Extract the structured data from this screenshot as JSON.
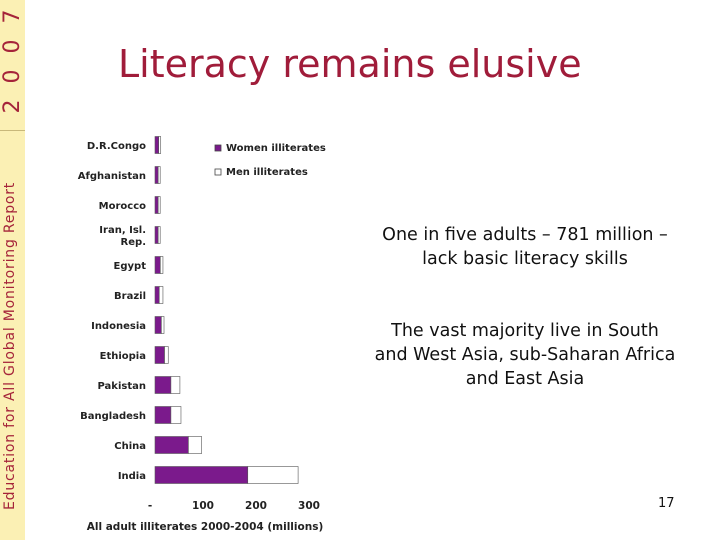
{
  "title": "Literacy remains elusive",
  "side_year_digits": [
    "2",
    "0",
    "0",
    "7"
  ],
  "side_text": "Education for All Global Monitoring Report",
  "callouts": [
    "One in five adults – 781 million – lack basic literacy skills",
    "The vast majority live in South and West Asia, sub-Saharan Africa and East Asia"
  ],
  "page_number": "17",
  "colors": {
    "accent": "#a01c3a",
    "women": "#7b1a8c",
    "men": "#ffffff",
    "band": "#fbf0b4"
  },
  "chart_data": {
    "type": "bar",
    "orientation": "horizontal",
    "stacked": true,
    "categories": [
      "D.R.Congo",
      "Afghanistan",
      "Morocco",
      "Iran, Isl. Rep.",
      "Egypt",
      "Brazil",
      "Indonesia",
      "Ethiopia",
      "Pakistan",
      "Bangladesh",
      "China",
      "India"
    ],
    "series": [
      {
        "name": "Women illiterates",
        "values": [
          7,
          6,
          6,
          6,
          10,
          8,
          12,
          18,
          30,
          30,
          63,
          175
        ]
      },
      {
        "name": "Men illiterates",
        "values": [
          3,
          3,
          3,
          3,
          5,
          7,
          5,
          7,
          17,
          19,
          25,
          95
        ]
      }
    ],
    "xlabel": "All adult illiterates 2000-2004 (millions)",
    "xticks": [
      "-",
      "100",
      "200",
      "300"
    ],
    "xlim": [
      0,
      300
    ],
    "legend": "top-right",
    "grid": false
  }
}
